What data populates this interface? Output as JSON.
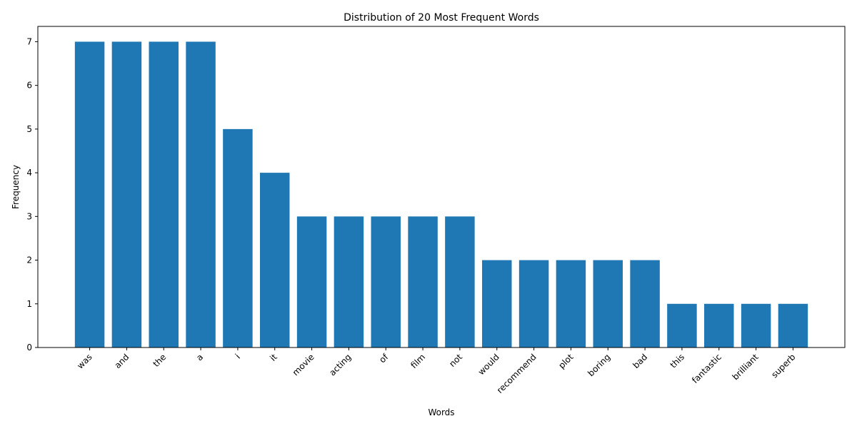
{
  "chart_data": {
    "type": "bar",
    "title": "Distribution of 20 Most Frequent Words",
    "xlabel": "Words",
    "ylabel": "Frequency",
    "categories": [
      "was",
      "and",
      "the",
      "a",
      "i",
      "it",
      "movie",
      "acting",
      "of",
      "film",
      "not",
      "would",
      "recommend",
      "plot",
      "boring",
      "bad",
      "this",
      "fantastic",
      "brilliant",
      "superb"
    ],
    "values": [
      7,
      7,
      7,
      7,
      5,
      4,
      3,
      3,
      3,
      3,
      3,
      2,
      2,
      2,
      2,
      2,
      1,
      1,
      1,
      1
    ],
    "yticks": [
      "0",
      "1",
      "2",
      "3",
      "4",
      "5",
      "6",
      "7"
    ],
    "ylim": [
      0,
      7.35
    ],
    "grid": false,
    "bar_color": "#1f77b4"
  }
}
